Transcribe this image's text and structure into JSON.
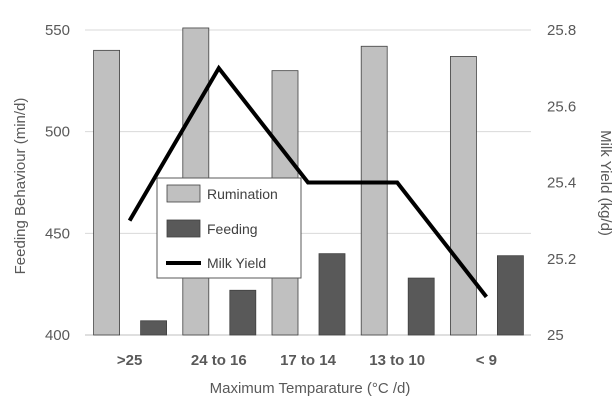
{
  "chart_data": {
    "type": "bar",
    "categories": [
      ">25",
      "24 to 16",
      "17 to 14",
      "13 to 10",
      "< 9"
    ],
    "series": [
      {
        "name": "Rumination",
        "type": "bar",
        "axis": "left",
        "values": [
          540,
          551,
          530,
          542,
          537
        ],
        "color": "#c0c0c0"
      },
      {
        "name": "Feeding",
        "type": "bar",
        "axis": "left",
        "values": [
          407,
          422,
          440,
          428,
          439
        ],
        "color": "#595959"
      },
      {
        "name": "Milk Yield",
        "type": "line",
        "axis": "right",
        "values": [
          25.3,
          25.7,
          25.4,
          25.4,
          25.1
        ],
        "color": "#000000"
      }
    ],
    "xlabel": "Maximum Temparature (°C /d)",
    "ylabel": "Feeding  Behaviour (min/d)",
    "y2label": "Milk Yield  (kg/d)",
    "ylim": [
      400,
      550
    ],
    "y2lim": [
      25,
      25.8
    ],
    "yticks": [
      400,
      450,
      500,
      550
    ],
    "y2ticks": [
      "25",
      "25.2",
      "25.4",
      "25.6",
      "25.8"
    ],
    "grid": true,
    "legend_position": "center-left"
  }
}
